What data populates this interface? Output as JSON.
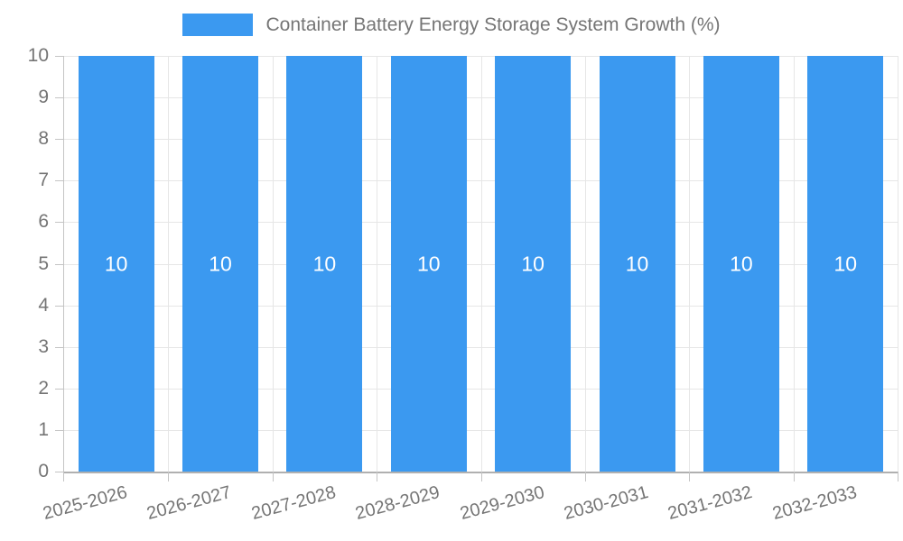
{
  "legend": {
    "label": "Container Battery Energy Storage System Growth (%)"
  },
  "chart_data": {
    "type": "bar",
    "title": "Container Battery Energy Storage System Growth (%)",
    "categories": [
      "2025-2026",
      "2026-2027",
      "2027-2028",
      "2028-2029",
      "2029-2030",
      "2030-2031",
      "2031-2032",
      "2032-2033"
    ],
    "values": [
      10,
      10,
      10,
      10,
      10,
      10,
      10,
      10
    ],
    "bar_value_labels": [
      "10",
      "10",
      "10",
      "10",
      "10",
      "10",
      "10",
      "10"
    ],
    "xlabel": "",
    "ylabel": "",
    "ylim": [
      0,
      10
    ],
    "yticks": [
      0,
      1,
      2,
      3,
      4,
      5,
      6,
      7,
      8,
      9,
      10
    ],
    "grid": true,
    "legend_position": "top-center",
    "x_label_rotation_deg": -15,
    "colors": {
      "bar": "#3B99F0",
      "bar_value_label": "#FFFFFF",
      "grid_line": "#E6E6E6",
      "axis_line": "#B0B0B0",
      "tick_mark": "#C4C4C4",
      "axis_text": "#757575",
      "background": "#FFFFFF"
    }
  }
}
